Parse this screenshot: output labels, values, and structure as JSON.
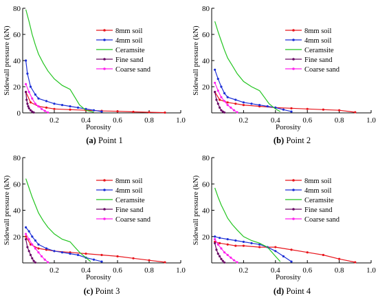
{
  "chart_data": [
    {
      "type": "line",
      "caption_letter": "(a)",
      "caption_text": " Point 1",
      "xlabel": "Porosity",
      "ylabel": "Sidewall pressure (kN)",
      "xlim": [
        0,
        1.0
      ],
      "ylim": [
        0,
        80
      ],
      "xticks": [
        "0.2",
        "0.4",
        "0.6",
        "0.8",
        "1.0"
      ],
      "yticks": [
        "0",
        "20",
        "40",
        "60",
        "80"
      ],
      "grid": false,
      "legend_position": "upper-center",
      "series": [
        {
          "name": "8mm soil",
          "color": "#e8141b",
          "marker": "dot",
          "x": [
            0.02,
            0.05,
            0.1,
            0.15,
            0.2,
            0.3,
            0.4,
            0.5,
            0.6,
            0.7,
            0.8,
            0.9
          ],
          "y": [
            16,
            8,
            5,
            4,
            3,
            2.5,
            2,
            1.5,
            1.2,
            0.8,
            0.5,
            0.2
          ]
        },
        {
          "name": "4mm soil",
          "color": "#1c2fd6",
          "marker": "dot",
          "x": [
            0.02,
            0.03,
            0.05,
            0.08,
            0.1,
            0.15,
            0.2,
            0.25,
            0.3,
            0.35,
            0.4,
            0.45,
            0.5
          ],
          "y": [
            40,
            30,
            20,
            14,
            11,
            9,
            7,
            6,
            5,
            4,
            3,
            2,
            1
          ]
        },
        {
          "name": "Ceramsite",
          "color": "#22c41f",
          "marker": "none",
          "x": [
            0.02,
            0.04,
            0.06,
            0.08,
            0.1,
            0.13,
            0.16,
            0.2,
            0.25,
            0.3,
            0.33,
            0.36,
            0.4,
            0.45
          ],
          "y": [
            79,
            70,
            60,
            52,
            45,
            38,
            32,
            26,
            21,
            18,
            12,
            6,
            2,
            0.5
          ]
        },
        {
          "name": "Fine sand",
          "color": "#6a0a66",
          "marker": "dot",
          "x": [
            0.02,
            0.025,
            0.03,
            0.035,
            0.04,
            0.05,
            0.06,
            0.07
          ],
          "y": [
            16,
            10,
            7,
            5,
            3.5,
            2,
            1,
            0.3
          ]
        },
        {
          "name": "Coarse sand",
          "color": "#ff22ee",
          "marker": "dot",
          "x": [
            0.02,
            0.04,
            0.06,
            0.08,
            0.1,
            0.12,
            0.14,
            0.16
          ],
          "y": [
            22,
            16,
            11,
            7,
            5,
            3,
            1.5,
            0.3
          ]
        }
      ]
    },
    {
      "type": "line",
      "caption_letter": "(b)",
      "caption_text": " Point 2",
      "xlabel": "Porosity",
      "ylabel": "Sidewall pressure (kN)",
      "xlim": [
        0,
        1.0
      ],
      "ylim": [
        0,
        80
      ],
      "xticks": [
        "0.2",
        "0.4",
        "0.6",
        "0.8",
        "1.0"
      ],
      "yticks": [
        "20",
        "40",
        "60",
        "80"
      ],
      "grid": false,
      "legend_position": "upper-center",
      "series": [
        {
          "name": "8mm soil",
          "color": "#e8141b",
          "marker": "dot",
          "x": [
            0.02,
            0.05,
            0.1,
            0.15,
            0.2,
            0.3,
            0.4,
            0.5,
            0.6,
            0.7,
            0.8,
            0.9
          ],
          "y": [
            16,
            10,
            8,
            7,
            6,
            5,
            4,
            3.5,
            3,
            2.5,
            2,
            0.5
          ]
        },
        {
          "name": "4mm soil",
          "color": "#1c2fd6",
          "marker": "dot",
          "x": [
            0.02,
            0.04,
            0.06,
            0.08,
            0.1,
            0.15,
            0.2,
            0.25,
            0.3,
            0.35,
            0.4,
            0.45,
            0.5
          ],
          "y": [
            33,
            26,
            20,
            15,
            12,
            10,
            8,
            7,
            6,
            5,
            4,
            2.5,
            1
          ]
        },
        {
          "name": "Ceramsite",
          "color": "#22c41f",
          "marker": "none",
          "x": [
            0.02,
            0.04,
            0.06,
            0.08,
            0.1,
            0.13,
            0.16,
            0.2,
            0.25,
            0.3,
            0.33,
            0.36,
            0.4,
            0.43
          ],
          "y": [
            70,
            62,
            55,
            48,
            42,
            36,
            30,
            24,
            20,
            17,
            12,
            7,
            3,
            1
          ]
        },
        {
          "name": "Fine sand",
          "color": "#6a0a66",
          "marker": "dot",
          "x": [
            0.02,
            0.03,
            0.04,
            0.05,
            0.06,
            0.07,
            0.08
          ],
          "y": [
            16,
            10,
            7,
            4,
            2,
            1,
            0.3
          ]
        },
        {
          "name": "Coarse sand",
          "color": "#ff22ee",
          "marker": "dot",
          "x": [
            0.02,
            0.04,
            0.06,
            0.08,
            0.1,
            0.12,
            0.14,
            0.16
          ],
          "y": [
            23,
            17,
            12,
            9,
            6,
            4,
            2,
            0.5
          ]
        }
      ]
    },
    {
      "type": "line",
      "caption_letter": "(c)",
      "caption_text": " Point 3",
      "xlabel": "Porosity",
      "ylabel": "Sidewall pressure (kN)",
      "xlim": [
        0,
        1.0
      ],
      "ylim": [
        0,
        80
      ],
      "xticks": [
        "0.2",
        "0.4",
        "0.6",
        "0.8",
        "1.0"
      ],
      "yticks": [
        "20",
        "40",
        "60",
        "80"
      ],
      "grid": false,
      "legend_position": "upper-right",
      "series": [
        {
          "name": "8mm soil",
          "color": "#e8141b",
          "marker": "dot",
          "x": [
            0.02,
            0.05,
            0.1,
            0.15,
            0.2,
            0.3,
            0.4,
            0.5,
            0.6,
            0.7,
            0.8,
            0.9
          ],
          "y": [
            20,
            14,
            11,
            10,
            9,
            8,
            7,
            6,
            5,
            3.5,
            2,
            0.5
          ]
        },
        {
          "name": "4mm soil",
          "color": "#1c2fd6",
          "marker": "dot",
          "x": [
            0.02,
            0.04,
            0.06,
            0.08,
            0.1,
            0.15,
            0.2,
            0.25,
            0.3,
            0.35,
            0.4,
            0.45,
            0.5
          ],
          "y": [
            27,
            24,
            20,
            17,
            14,
            11,
            9,
            8,
            7,
            6,
            4,
            2.5,
            1
          ]
        },
        {
          "name": "Ceramsite",
          "color": "#22c41f",
          "marker": "none",
          "x": [
            0.02,
            0.04,
            0.06,
            0.08,
            0.1,
            0.13,
            0.16,
            0.2,
            0.25,
            0.3,
            0.33,
            0.36,
            0.4,
            0.43
          ],
          "y": [
            64,
            57,
            50,
            44,
            38,
            32,
            27,
            22,
            18,
            16,
            12,
            8,
            4,
            1
          ]
        },
        {
          "name": "Fine sand",
          "color": "#6a0a66",
          "marker": "dot",
          "x": [
            0.02,
            0.03,
            0.04,
            0.05,
            0.06,
            0.07,
            0.08
          ],
          "y": [
            18,
            12,
            9,
            6,
            3.5,
            1.5,
            0.3
          ]
        },
        {
          "name": "Coarse sand",
          "color": "#ff22ee",
          "marker": "dot",
          "x": [
            0.02,
            0.04,
            0.06,
            0.08,
            0.1,
            0.12,
            0.14,
            0.16
          ],
          "y": [
            22,
            18,
            14,
            11,
            8,
            5,
            2.5,
            0.5
          ]
        }
      ]
    },
    {
      "type": "line",
      "caption_letter": "(d)",
      "caption_text": " Point 4",
      "xlabel": "Porosity",
      "ylabel": "Sidewall pressure (kN)",
      "xlim": [
        0,
        1.0
      ],
      "ylim": [
        0,
        80
      ],
      "xticks": [
        "0.2",
        "0.4",
        "0.6",
        "0.8",
        "1.0"
      ],
      "yticks": [
        "20",
        "40",
        "60",
        "80"
      ],
      "grid": false,
      "legend_position": "upper-right",
      "series": [
        {
          "name": "8mm soil",
          "color": "#e8141b",
          "marker": "dot",
          "x": [
            0.02,
            0.05,
            0.1,
            0.15,
            0.2,
            0.3,
            0.4,
            0.5,
            0.6,
            0.7,
            0.8,
            0.9
          ],
          "y": [
            16,
            15,
            14,
            13,
            13,
            12,
            12,
            10,
            8,
            6,
            3,
            0.5
          ]
        },
        {
          "name": "4mm soil",
          "color": "#1c2fd6",
          "marker": "dot",
          "x": [
            0.02,
            0.05,
            0.1,
            0.15,
            0.2,
            0.25,
            0.3,
            0.35,
            0.4,
            0.45,
            0.5
          ],
          "y": [
            20,
            19,
            18,
            17,
            16,
            15,
            14,
            12,
            9,
            5,
            1
          ]
        },
        {
          "name": "Ceramsite",
          "color": "#22c41f",
          "marker": "none",
          "x": [
            0.02,
            0.04,
            0.06,
            0.08,
            0.1,
            0.13,
            0.16,
            0.2,
            0.25,
            0.3,
            0.35,
            0.4,
            0.43
          ],
          "y": [
            57,
            50,
            44,
            39,
            34,
            29,
            25,
            20,
            17,
            15,
            12,
            5,
            1
          ]
        },
        {
          "name": "Fine sand",
          "color": "#6a0a66",
          "marker": "dot",
          "x": [
            0.02,
            0.03,
            0.04,
            0.05,
            0.06,
            0.07,
            0.08
          ],
          "y": [
            15,
            10,
            7,
            5,
            3,
            1.5,
            0.3
          ]
        },
        {
          "name": "Coarse sand",
          "color": "#ff22ee",
          "marker": "dot",
          "x": [
            0.02,
            0.04,
            0.06,
            0.08,
            0.1,
            0.12,
            0.14,
            0.16
          ],
          "y": [
            18,
            14,
            11,
            8,
            6,
            4,
            2,
            0.5
          ]
        }
      ]
    }
  ]
}
